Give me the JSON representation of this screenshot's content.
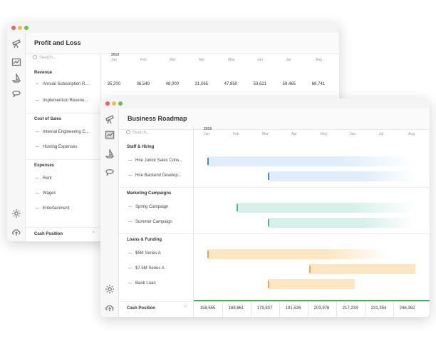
{
  "pl": {
    "title": "Profit and Loss",
    "search_placeholder": "Search...",
    "year": "2019",
    "months": [
      "Jan",
      "Feb",
      "Mar",
      "Apr",
      "May",
      "Jun",
      "Jul",
      "Aug"
    ],
    "sections": [
      {
        "label": "Revenue",
        "items": [
          {
            "label": "Annual Subscription R...",
            "values": [
              "35,200",
              "36,549",
              "48,000",
              "31,065",
              "47,850",
              "53,621",
              "59,465",
              "68,741"
            ]
          },
          {
            "label": "Implemention Revenu..."
          }
        ]
      },
      {
        "label": "Cost of Sales",
        "items": [
          {
            "label": "Internal Engineering C..."
          },
          {
            "label": "Hosting Expenses"
          }
        ]
      },
      {
        "label": "Expenses",
        "items": [
          {
            "label": "Rent"
          },
          {
            "label": "Wages"
          },
          {
            "label": "Entertainment"
          }
        ]
      }
    ],
    "footer": "Cash Position"
  },
  "br": {
    "title": "Business Roadmap",
    "search_placeholder": "Search...",
    "year": "2019",
    "months": [
      "Jan",
      "Feb",
      "Mar",
      "Apr",
      "May",
      "Jun",
      "Jul",
      "Aug"
    ],
    "sections": [
      {
        "label": "Staff & Hiring",
        "items": [
          {
            "label": "Hire Junior Sales Cons...",
            "color": "#3f8fd6",
            "fill": "#dfeefa",
            "start": 0.0,
            "end": 1.0,
            "fade": true
          },
          {
            "label": "Hire Backend Develop...",
            "color": "#3f8fd6",
            "fill": "#dfeefa",
            "start": 0.29,
            "end": 1.0,
            "fade": true
          }
        ]
      },
      {
        "label": "Marketing Campaigns",
        "items": [
          {
            "label": "Spring Campaign",
            "color": "#3fb8a0",
            "fill": "#d6f1ea",
            "start": 0.14,
            "end": 1.0,
            "fade": true
          },
          {
            "label": "Summer Campaign",
            "color": "#3fb8a0",
            "fill": "#d6f1ea",
            "start": 0.29,
            "end": 1.0,
            "fade": true
          }
        ]
      },
      {
        "label": "Loans & Funding",
        "items": [
          {
            "label": "$5M Series A",
            "color": "#f2a93b",
            "fill": "#fde6c2",
            "start": 0.0,
            "end": 0.88,
            "fade": true
          },
          {
            "label": "$7.5M Series A",
            "color": "#f2a93b",
            "fill": "#fde6c2",
            "start": 0.49,
            "end": 1.0,
            "fade": false
          },
          {
            "label": "Bank Loan",
            "color": "#f2a93b",
            "fill": "#fde6c2",
            "start": 0.29,
            "end": 0.71,
            "fade": false
          }
        ]
      }
    ],
    "footer": "Cash Position",
    "cash": [
      "158,555",
      "168,861",
      "179,837",
      "191,526",
      "203,976",
      "217,234",
      "231,354",
      "246,392"
    ]
  }
}
